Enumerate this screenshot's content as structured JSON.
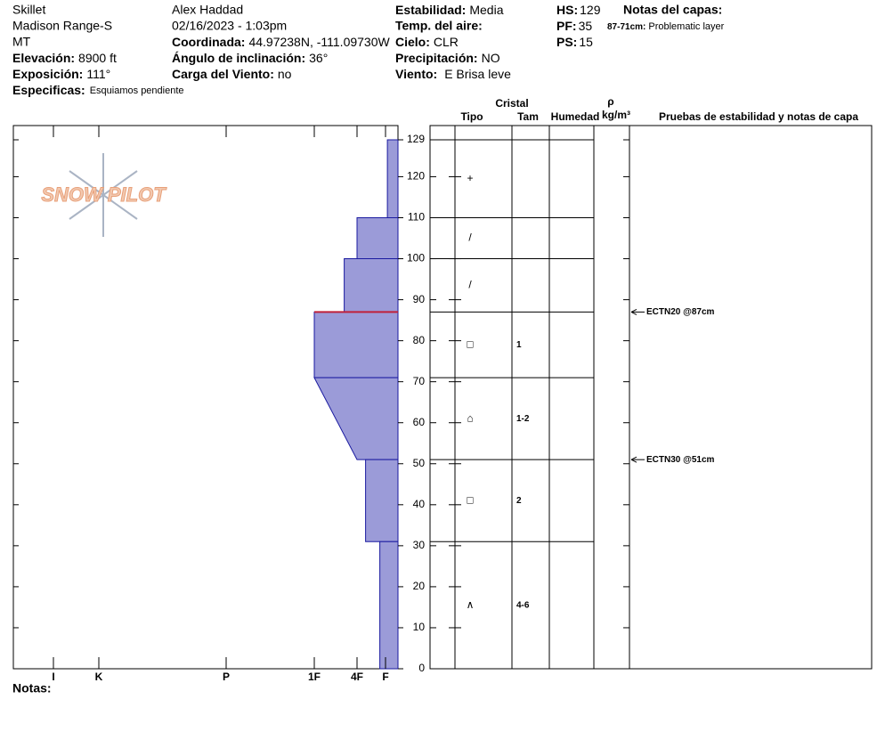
{
  "header": {
    "location": "Skillet",
    "range": "Madison Range-S",
    "state": "MT",
    "elevation_label": "Elevación:",
    "elevation": "8900 ft",
    "aspect_label": "Exposición:",
    "aspect": "111°",
    "specifics_label": "Especificas:",
    "specifics": "Esquiamos pendiente",
    "observer": "Alex Haddad",
    "datetime": "02/16/2023 - 1:03pm",
    "coord_label": "Coordinada:",
    "coord": "44.97238N, -111.09730W",
    "slope_label": "Ángulo de inclinación:",
    "slope": "36°",
    "wind_load_label": "Carga del Viento:",
    "wind_load": "no",
    "stability_label": "Estabilidad:",
    "stability": "Media",
    "air_temp_label": "Temp. del aire:",
    "sky_label": "Cielo:",
    "sky": "CLR",
    "precip_label": "Precipitación:",
    "precip": "NO",
    "wind_label": "Viento:",
    "wind": "E Brisa leve",
    "hs_label": "HS:",
    "hs": "129",
    "pf_label": "PF:",
    "pf": "35",
    "ps_label": "PS:",
    "ps": "15",
    "layer_notes_label": "Notas del capas:",
    "layer_note_range": "87-71cm:",
    "layer_note": "Problematic layer"
  },
  "logo": "SNOW PILOT",
  "columns": {
    "crystal": "Cristal",
    "type": "Tipo",
    "size": "Tam",
    "moisture": "Humedad",
    "rho": "ρ",
    "density": "kg/m³",
    "tests": "Pruebas de estabilidad y notas de capa"
  },
  "notes_label": "Notas:",
  "chart_data": {
    "type": "snow-profile",
    "ylim": [
      0,
      129
    ],
    "yticks": [
      0,
      10,
      20,
      30,
      40,
      50,
      60,
      70,
      80,
      90,
      100,
      110,
      120,
      129
    ],
    "xticks": [
      {
        "value": 1,
        "label": "F"
      },
      {
        "value": 2,
        "label": "4F"
      },
      {
        "value": 3,
        "label": "1F"
      },
      {
        "value": 4,
        "label": "P"
      },
      {
        "value": 5,
        "label": "K"
      },
      {
        "value": 6,
        "label": "I"
      }
    ],
    "color": "#9b9bd8",
    "highlight": 87,
    "layers": [
      {
        "top": 129,
        "bottom": 110,
        "hardness": 0.85,
        "grain": "+"
      },
      {
        "top": 110,
        "bottom": 100,
        "hardness": 2,
        "grain": "/"
      },
      {
        "top": 100,
        "bottom": 87,
        "hardness": 2.3,
        "grain": "/"
      },
      {
        "top": 87,
        "bottom": 71,
        "hardness": 3,
        "grain": "□",
        "size": "1"
      },
      {
        "top": 71,
        "bottom": 51,
        "hardness": 3,
        "hardness_bottom": 2,
        "grain": "⌂",
        "size": "1-2"
      },
      {
        "top": 51,
        "bottom": 31,
        "hardness": 1.7,
        "grain": "□",
        "size": "2"
      },
      {
        "top": 31,
        "bottom": 0,
        "hardness": 1.2,
        "grain": "∧",
        "size": "4-6"
      }
    ],
    "tests": [
      {
        "height": 87,
        "label": "ECTN20 @87cm"
      },
      {
        "height": 51,
        "label": "ECTN30 @51cm"
      }
    ]
  }
}
